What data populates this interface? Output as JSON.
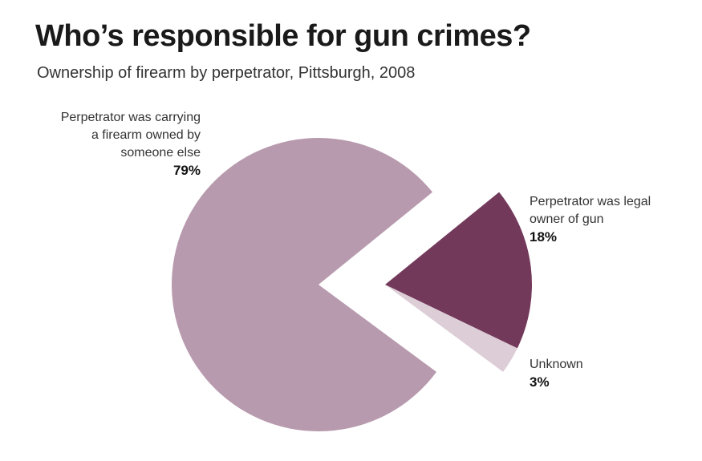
{
  "title": "Who’s responsible for gun crimes?",
  "subtitle": "Ownership of firearm by perpetrator, Pittsburgh, 2008",
  "chart_data": {
    "type": "pie",
    "title": "Who’s responsible for gun crimes?",
    "subtitle": "Ownership of firearm by perpetrator, Pittsburgh, 2008",
    "slices": [
      {
        "label": "Perpetrator was carrying a firearm owned by someone else",
        "label_lines": [
          "Perpetrator was carrying",
          "a firearm owned by",
          "someone else"
        ],
        "value": 79,
        "value_label": "79%",
        "color": "#b89aae"
      },
      {
        "label": "Perpetrator was legal owner of gun",
        "label_lines": [
          "Perpetrator was legal",
          "owner of gun"
        ],
        "value": 18,
        "value_label": "18%",
        "color": "#73395a"
      },
      {
        "label": "Unknown",
        "label_lines": [
          "Unknown"
        ],
        "value": 3,
        "value_label": "3%",
        "color": "#ddcdd7"
      }
    ],
    "exploded": [
      "Perpetrator was legal owner of gun",
      "Unknown"
    ]
  }
}
